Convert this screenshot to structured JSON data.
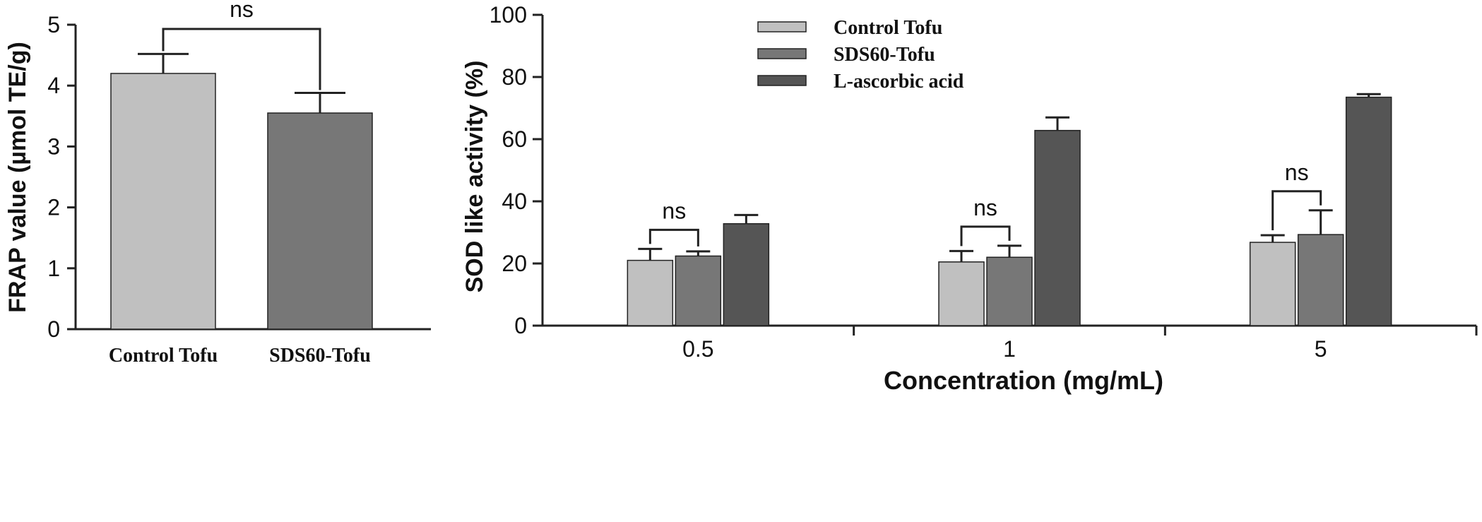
{
  "chart_data": [
    {
      "type": "bar",
      "categories": [
        "Control Tofu",
        "SDS60-Tofu"
      ],
      "values": [
        4.2,
        3.55
      ],
      "errors": [
        0.32,
        0.33
      ],
      "colors": [
        "#c0c0c0",
        "#777777"
      ],
      "title": "",
      "xlabel": "",
      "ylabel": "FRAP value (µmol TE/g)",
      "ylim": [
        0,
        5
      ],
      "yticks": [
        "0",
        "1",
        "2",
        "3",
        "4",
        "5"
      ],
      "annotations": [
        {
          "text": "ns",
          "between": [
            "Control Tofu",
            "SDS60-Tofu"
          ]
        }
      ],
      "grid": false
    },
    {
      "type": "bar",
      "categories": [
        "0.5",
        "1",
        "5"
      ],
      "series": [
        {
          "name": "Control Tofu",
          "values": [
            21,
            20.5,
            26.8
          ],
          "errors": [
            3.7,
            3.5,
            2.3
          ],
          "color": "#c0c0c0"
        },
        {
          "name": "SDS60-Tofu",
          "values": [
            22.4,
            22,
            29.3
          ],
          "errors": [
            1.5,
            3.7,
            7.8
          ],
          "color": "#777777"
        },
        {
          "name": "L-ascorbic acid",
          "values": [
            32.8,
            62.8,
            73.5
          ],
          "errors": [
            2.8,
            4.2,
            1.0
          ],
          "color": "#555555"
        }
      ],
      "title": "",
      "xlabel": "Concentration (mg/mL)",
      "ylabel": "SOD like activity (%)",
      "ylim": [
        0,
        100
      ],
      "yticks": [
        "0",
        "20",
        "40",
        "60",
        "80",
        "100"
      ],
      "annotations": [
        {
          "text": "ns",
          "category": "0.5",
          "between": [
            "Control Tofu",
            "SDS60-Tofu"
          ]
        },
        {
          "text": "ns",
          "category": "1",
          "between": [
            "Control Tofu",
            "SDS60-Tofu"
          ]
        },
        {
          "text": "ns",
          "category": "5",
          "between": [
            "Control Tofu",
            "SDS60-Tofu"
          ]
        }
      ],
      "legend_position": "top-left",
      "grid": false
    }
  ]
}
